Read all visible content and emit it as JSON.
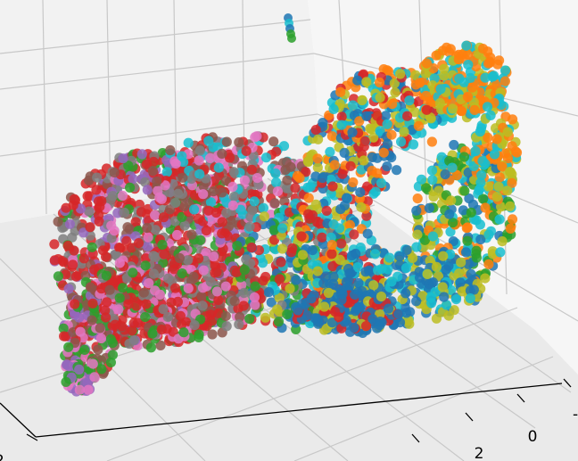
{
  "chart_data": {
    "type": "scatter",
    "projection": "3d",
    "title": "",
    "xlabel": "",
    "ylabel": "",
    "zlabel": "",
    "grid": true,
    "legend": "none",
    "tick_labels": {
      "bottom_axis": [
        "2",
        "0",
        "-"
      ],
      "left_axis": [
        "2"
      ]
    },
    "series_colors": [
      "#1f77b4",
      "#ff7f0e",
      "#2ca02c",
      "#d62728",
      "#9467bd",
      "#8c564b",
      "#e377c2",
      "#7f7f7f",
      "#bcbd22",
      "#17becf"
    ],
    "pane_colors": {
      "back": "#f2f2f2",
      "floor": "#eaeaea",
      "side": "#f6f6f6",
      "grid": "#c8c8c8"
    }
  }
}
